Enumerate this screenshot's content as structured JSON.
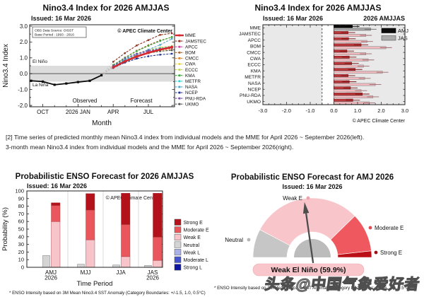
{
  "issued": "Issued: 16 Mar 2026",
  "credit": "© APEC Climate Center",
  "footnote": "* ENSO Intensity based on 3M Mean Nino3.4 SST Anomaly (Category Boundaries: +/-1.5, 1.0, 0.5°C)",
  "watermark": "头条@中国气象爱好者",
  "caption": {
    "line1": "[2] Time series of predicted monthly mean Nino3.4 index from individual models and the MME for April 2026 ~ September 2026(left).",
    "line2": "3-month mean Nino3.4 index from individual models and the MME for April 2026 ~ September 2026(right)."
  },
  "chart_data": [
    {
      "id": "nino34-timeseries",
      "type": "line",
      "title": "Nino3.4 Index for 2026 AMJJAS",
      "xlabel": "Month",
      "ylabel": "Nino3.4 Index",
      "obs_source": "OBS Data Source: OISST",
      "base_period": "Base Period : 1993 - 2016",
      "labels": {
        "elnino": "El Niño",
        "lanina": "La Niña",
        "observed": "Observed",
        "forecast": "Forecast"
      },
      "x_tick_labels": [
        "OCT",
        "2026 JAN",
        "APR",
        "JUL"
      ],
      "x_tick_pos": [
        1,
        4,
        7,
        10
      ],
      "y_ticks": [
        3.0,
        2.0,
        1.0,
        0.0,
        -1.0,
        -2.0
      ],
      "ylim": [
        -2.1,
        3.1
      ],
      "neutral_band": [
        -0.5,
        0.5
      ],
      "observed": {
        "x": [
          0,
          1,
          2,
          3,
          4,
          5,
          6
        ],
        "values": [
          -0.45,
          -0.5,
          -0.7,
          -0.62,
          -0.53,
          -0.45,
          -0.1
        ],
        "color": "#0a0a0a"
      },
      "forecast_x": [
        7,
        8,
        9,
        10,
        11,
        12
      ],
      "series": [
        {
          "name": "MME",
          "color": "#d42a2e",
          "values": [
            0.4,
            0.78,
            1.08,
            1.32,
            1.52,
            1.68
          ]
        },
        {
          "name": "JAMSTEC",
          "color": "#8c2f1b",
          "values": [
            0.75,
            1.3,
            1.78,
            2.12,
            2.45,
            2.55
          ]
        },
        {
          "name": "APCC",
          "color": "#c8489c",
          "values": [
            0.45,
            0.88,
            1.18,
            1.42,
            1.55,
            1.6
          ]
        },
        {
          "name": "BOM",
          "color": "#a8642f",
          "values": [
            0.55,
            1.02,
            1.45,
            1.8,
            2.1,
            2.3
          ]
        },
        {
          "name": "CMCC",
          "color": "#e88428",
          "values": [
            0.42,
            0.82,
            1.1,
            1.35,
            1.5,
            1.55
          ]
        },
        {
          "name": "CWA",
          "color": "#e8d44c",
          "values": [
            0.46,
            0.92,
            1.26,
            1.52,
            1.66,
            1.76
          ]
        },
        {
          "name": "ECCC",
          "color": "#c2d45a",
          "values": [
            0.5,
            0.86,
            1.12,
            1.3,
            1.42,
            1.48
          ]
        },
        {
          "name": "KMA",
          "color": "#3aa83a",
          "values": [
            0.55,
            1.0,
            1.42,
            1.76,
            2.06,
            2.32
          ]
        },
        {
          "name": "METFR",
          "color": "#35cfd4",
          "values": [
            0.5,
            0.92,
            1.22,
            1.46,
            1.62,
            1.72
          ]
        },
        {
          "name": "NASA",
          "color": "#52a8c8",
          "values": [
            0.46,
            0.86,
            1.22,
            1.52,
            1.82,
            2.2
          ]
        },
        {
          "name": "NCEP",
          "color": "#20308f",
          "values": [
            0.36,
            0.7,
            0.95,
            1.1,
            1.2,
            1.26
          ]
        },
        {
          "name": "PNU-RDA",
          "color": "#7a4fa8",
          "values": [
            0.5,
            0.96,
            1.26,
            1.46,
            1.56,
            1.62
          ]
        },
        {
          "name": "UKMO",
          "color": "#555555",
          "values": [
            0.42,
            0.8,
            1.1,
            1.3,
            1.42,
            1.48
          ]
        }
      ]
    },
    {
      "id": "nino34-model-bars",
      "type": "hbar",
      "title": "Nino3.4 Index for 2026 AMJJAS",
      "header_right": "2026 AMJJAS",
      "models": [
        "MME",
        "JAMSTEC",
        "APCC",
        "BOM",
        "CMCC",
        "CWA",
        "ECCC",
        "KMA",
        "METFR",
        "NASA",
        "NCEP",
        "PNU-RDA",
        "UKMO"
      ],
      "x_ticks": [
        -3.0,
        -2.0,
        -1.0,
        0.0,
        1.0,
        2.0,
        3.0
      ],
      "xlim": [
        -3,
        3
      ],
      "dashed_line_x": -0.5,
      "series": [
        {
          "name": "AMJ",
          "err": 0.3,
          "values": [
            0.78,
            0.6,
            0.62,
            1.15,
            0.55,
            0.65,
            0.75,
            0.9,
            0.6,
            0.65,
            0.7,
            1.2,
            0.8
          ]
        },
        {
          "name": "JAS",
          "err": 0.25,
          "values": [
            1.55,
            1.35,
            1.4,
            2.2,
            1.35,
            1.45,
            1.25,
            2.05,
            1.3,
            1.75,
            1.15,
            1.65,
            1.5
          ]
        }
      ],
      "colors": {
        "amj": "#bb3a3e",
        "amj_edge": "#7c1013",
        "jas": "#f2babe",
        "jas_edge": "#8a8a8a",
        "mme_amj": "#0c0c0c",
        "mme_jas": "#ababab"
      }
    },
    {
      "id": "prob-enso-bars",
      "type": "stacked_bar",
      "title": "Probabilistic ENSO Forecast for 2026 AMJJAS",
      "xlabel": "Time Period",
      "ylabel": "Probability (%)",
      "categories": [
        [
          "AMJ",
          "2026"
        ],
        [
          "MJJ"
        ],
        [
          "JJA"
        ],
        [
          "JAS",
          "2026"
        ]
      ],
      "y_ticks": [
        0,
        10,
        20,
        30,
        40,
        50,
        60,
        70,
        80,
        90,
        100
      ],
      "ylim": [
        0,
        100
      ],
      "neutral_color": "#d4d4d4",
      "neutral": [
        15.5,
        4.0,
        3.0,
        2.5
      ],
      "series": [
        {
          "name": "Weak E",
          "color": "#f6c4c9",
          "values": [
            59.9,
            36.0,
            14.0,
            9.0
          ]
        },
        {
          "name": "Moderate E",
          "color": "#e9565c",
          "values": [
            21.1,
            39.0,
            42.0,
            30.5
          ]
        },
        {
          "name": "Strong E",
          "color": "#b3121a",
          "values": [
            3.5,
            21.5,
            41.0,
            57.5
          ]
        }
      ],
      "legend": [
        {
          "name": "Strong E",
          "color": "#b3121a"
        },
        {
          "name": "Moderate E",
          "color": "#e9565c"
        },
        {
          "name": "Weak E",
          "color": "#f6c4c9"
        },
        {
          "name": "Neutral",
          "color": "#d4d4d4"
        },
        {
          "name": "Weak L",
          "color": "#aab0e8"
        },
        {
          "name": "Moderate L",
          "color": "#4553cf"
        },
        {
          "name": "Strong L",
          "color": "#0d17a0"
        }
      ]
    },
    {
      "id": "prob-enso-gauge",
      "type": "gauge",
      "title": "Probabilistic ENSO Forecast for AMJ 2026",
      "segments": [
        {
          "name": "Neutral",
          "pct": 15.5,
          "color": "#c6c6c6",
          "dot": "#b5b5b5"
        },
        {
          "name": "Weak E",
          "pct": 59.9,
          "color": "#f8c5ca",
          "dot": "#f0a2aa"
        },
        {
          "name": "Moderate E",
          "pct": 21.1,
          "color": "#ee585e",
          "dot": "#e04a52"
        },
        {
          "name": "Strong E",
          "pct": 3.5,
          "color": "#bb0f18",
          "dot": "#a00d14"
        }
      ],
      "needle_pct": 45.5,
      "result_label": "Weak El Niño (59.9%)",
      "result_bg": "#f8c6cb"
    }
  ]
}
